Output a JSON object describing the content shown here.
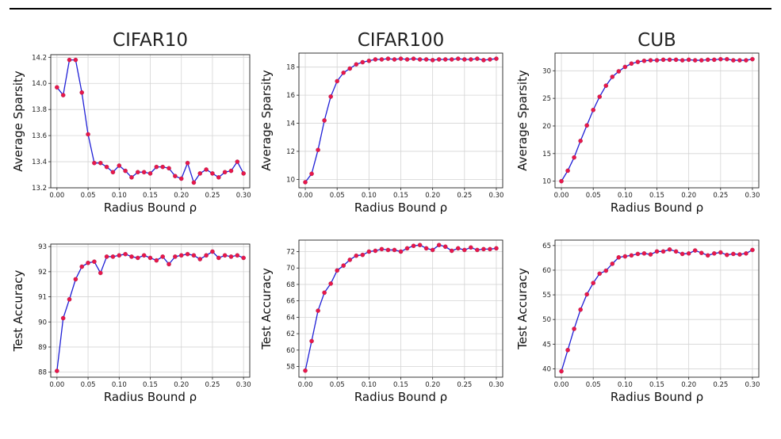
{
  "caption": "",
  "chart_data": [
    {
      "type": "line",
      "column_title": "CIFAR10",
      "xlabel": "Radius Bound ρ",
      "ylabel": "Average Sparsity",
      "xlim": [
        -0.01,
        0.31
      ],
      "ylim": [
        13.2,
        14.22
      ],
      "xticks": [
        0.0,
        0.05,
        0.1,
        0.15,
        0.2,
        0.25,
        0.3
      ],
      "yticks": [
        13.2,
        13.4,
        13.6,
        13.8,
        14.0,
        14.2
      ],
      "ytick_decimals": 1,
      "grid": true,
      "line_color": "#1f1fd6",
      "marker_color": "#e8174a",
      "series": [
        {
          "x": [
            0.0,
            0.01,
            0.02,
            0.03,
            0.04,
            0.05,
            0.06,
            0.07,
            0.08,
            0.09,
            0.1,
            0.11,
            0.12,
            0.13,
            0.14,
            0.15,
            0.16,
            0.17,
            0.18,
            0.19,
            0.2,
            0.21,
            0.22,
            0.23,
            0.24,
            0.25,
            0.26,
            0.27,
            0.28,
            0.29,
            0.3
          ],
          "y": [
            13.97,
            13.91,
            14.18,
            14.18,
            13.93,
            13.61,
            13.39,
            13.39,
            13.36,
            13.32,
            13.37,
            13.33,
            13.28,
            13.32,
            13.32,
            13.31,
            13.36,
            13.36,
            13.35,
            13.29,
            13.27,
            13.39,
            13.24,
            13.31,
            13.34,
            13.31,
            13.28,
            13.32,
            13.33,
            13.4,
            13.31
          ]
        }
      ]
    },
    {
      "type": "line",
      "column_title": "CIFAR100",
      "xlabel": "Radius Bound ρ",
      "ylabel": "Average Sparsity",
      "xlim": [
        -0.01,
        0.31
      ],
      "ylim": [
        9.4,
        19.0
      ],
      "xticks": [
        0.0,
        0.05,
        0.1,
        0.15,
        0.2,
        0.25,
        0.3
      ],
      "yticks": [
        10,
        12,
        14,
        16,
        18
      ],
      "ytick_decimals": 0,
      "grid": true,
      "line_color": "#1f1fd6",
      "marker_color": "#e8174a",
      "series": [
        {
          "x": [
            0.0,
            0.01,
            0.02,
            0.03,
            0.04,
            0.05,
            0.06,
            0.07,
            0.08,
            0.09,
            0.1,
            0.11,
            0.12,
            0.13,
            0.14,
            0.15,
            0.16,
            0.17,
            0.18,
            0.19,
            0.2,
            0.21,
            0.22,
            0.23,
            0.24,
            0.25,
            0.26,
            0.27,
            0.28,
            0.29,
            0.3
          ],
          "y": [
            9.8,
            10.4,
            12.1,
            14.2,
            15.9,
            17.0,
            17.6,
            17.9,
            18.2,
            18.35,
            18.45,
            18.55,
            18.55,
            18.6,
            18.55,
            18.6,
            18.55,
            18.6,
            18.55,
            18.55,
            18.5,
            18.55,
            18.55,
            18.55,
            18.6,
            18.55,
            18.55,
            18.6,
            18.5,
            18.55,
            18.6
          ]
        }
      ]
    },
    {
      "type": "line",
      "column_title": "CUB",
      "xlabel": "Radius Bound ρ",
      "ylabel": "Average Sparsity",
      "xlim": [
        -0.01,
        0.31
      ],
      "ylim": [
        8.8,
        33.2
      ],
      "xticks": [
        0.0,
        0.05,
        0.1,
        0.15,
        0.2,
        0.25,
        0.3
      ],
      "yticks": [
        10,
        15,
        20,
        25,
        30
      ],
      "ytick_decimals": 0,
      "grid": true,
      "line_color": "#1f1fd6",
      "marker_color": "#e8174a",
      "series": [
        {
          "x": [
            0.0,
            0.01,
            0.02,
            0.03,
            0.04,
            0.05,
            0.06,
            0.07,
            0.08,
            0.09,
            0.1,
            0.11,
            0.12,
            0.13,
            0.14,
            0.15,
            0.16,
            0.17,
            0.18,
            0.19,
            0.2,
            0.21,
            0.22,
            0.23,
            0.24,
            0.25,
            0.26,
            0.27,
            0.28,
            0.29,
            0.3
          ],
          "y": [
            10.0,
            11.9,
            14.3,
            17.3,
            20.1,
            22.9,
            25.3,
            27.3,
            28.9,
            29.9,
            30.7,
            31.3,
            31.6,
            31.8,
            31.9,
            31.9,
            32.0,
            32.0,
            32.0,
            31.9,
            32.0,
            31.9,
            31.9,
            32.0,
            32.0,
            32.1,
            32.1,
            31.9,
            31.9,
            31.9,
            32.1
          ]
        }
      ]
    },
    {
      "type": "line",
      "column_title": "",
      "xlabel": "Radius Bound ρ",
      "ylabel": "Test Accuracy",
      "xlim": [
        -0.01,
        0.31
      ],
      "ylim": [
        87.8,
        93.1
      ],
      "xticks": [
        0.0,
        0.05,
        0.1,
        0.15,
        0.2,
        0.25,
        0.3
      ],
      "yticks": [
        88,
        89,
        90,
        91,
        92,
        93
      ],
      "ytick_decimals": 0,
      "grid": true,
      "line_color": "#1f1fd6",
      "marker_color": "#e8174a",
      "series": [
        {
          "x": [
            0.0,
            0.01,
            0.02,
            0.03,
            0.04,
            0.05,
            0.06,
            0.07,
            0.08,
            0.09,
            0.1,
            0.11,
            0.12,
            0.13,
            0.14,
            0.15,
            0.16,
            0.17,
            0.18,
            0.19,
            0.2,
            0.21,
            0.22,
            0.23,
            0.24,
            0.25,
            0.26,
            0.27,
            0.28,
            0.29,
            0.3
          ],
          "y": [
            88.05,
            90.15,
            90.9,
            91.7,
            92.2,
            92.35,
            92.4,
            91.95,
            92.6,
            92.6,
            92.65,
            92.7,
            92.6,
            92.55,
            92.65,
            92.55,
            92.45,
            92.6,
            92.3,
            92.6,
            92.65,
            92.7,
            92.65,
            92.5,
            92.65,
            92.8,
            92.55,
            92.65,
            92.6,
            92.65,
            92.55
          ]
        }
      ]
    },
    {
      "type": "line",
      "column_title": "",
      "xlabel": "Radius Bound ρ",
      "ylabel": "Test Accuracy",
      "xlim": [
        -0.01,
        0.31
      ],
      "ylim": [
        56.7,
        73.4
      ],
      "xticks": [
        0.0,
        0.05,
        0.1,
        0.15,
        0.2,
        0.25,
        0.3
      ],
      "yticks": [
        58,
        60,
        62,
        64,
        66,
        68,
        70,
        72
      ],
      "ytick_decimals": 0,
      "grid": true,
      "line_color": "#1f1fd6",
      "marker_color": "#e8174a",
      "series": [
        {
          "x": [
            0.0,
            0.01,
            0.02,
            0.03,
            0.04,
            0.05,
            0.06,
            0.07,
            0.08,
            0.09,
            0.1,
            0.11,
            0.12,
            0.13,
            0.14,
            0.15,
            0.16,
            0.17,
            0.18,
            0.19,
            0.2,
            0.21,
            0.22,
            0.23,
            0.24,
            0.25,
            0.26,
            0.27,
            0.28,
            0.29,
            0.3
          ],
          "y": [
            57.5,
            61.1,
            64.8,
            67.0,
            68.1,
            69.7,
            70.3,
            71.0,
            71.5,
            71.6,
            72.0,
            72.1,
            72.3,
            72.2,
            72.2,
            72.0,
            72.4,
            72.7,
            72.8,
            72.4,
            72.2,
            72.8,
            72.6,
            72.1,
            72.4,
            72.2,
            72.5,
            72.2,
            72.3,
            72.3,
            72.4
          ]
        }
      ]
    },
    {
      "type": "line",
      "column_title": "",
      "xlabel": "Radius Bound ρ",
      "ylabel": "Test Accuracy",
      "xlim": [
        -0.01,
        0.31
      ],
      "ylim": [
        38.3,
        66.1
      ],
      "xticks": [
        0.0,
        0.05,
        0.1,
        0.15,
        0.2,
        0.25,
        0.3
      ],
      "yticks": [
        40,
        45,
        50,
        55,
        60,
        65
      ],
      "ytick_decimals": 0,
      "grid": true,
      "line_color": "#1f1fd6",
      "marker_color": "#e8174a",
      "series": [
        {
          "x": [
            0.0,
            0.01,
            0.02,
            0.03,
            0.04,
            0.05,
            0.06,
            0.07,
            0.08,
            0.09,
            0.1,
            0.11,
            0.12,
            0.13,
            0.14,
            0.15,
            0.16,
            0.17,
            0.18,
            0.19,
            0.2,
            0.21,
            0.22,
            0.23,
            0.24,
            0.25,
            0.26,
            0.27,
            0.28,
            0.29,
            0.3
          ],
          "y": [
            39.5,
            43.8,
            48.1,
            52.0,
            55.1,
            57.4,
            59.3,
            59.9,
            61.3,
            62.6,
            62.8,
            63.0,
            63.3,
            63.4,
            63.2,
            63.8,
            63.8,
            64.2,
            63.8,
            63.3,
            63.4,
            64.0,
            63.5,
            63.0,
            63.4,
            63.6,
            63.1,
            63.3,
            63.2,
            63.4,
            64.1
          ]
        }
      ]
    }
  ]
}
